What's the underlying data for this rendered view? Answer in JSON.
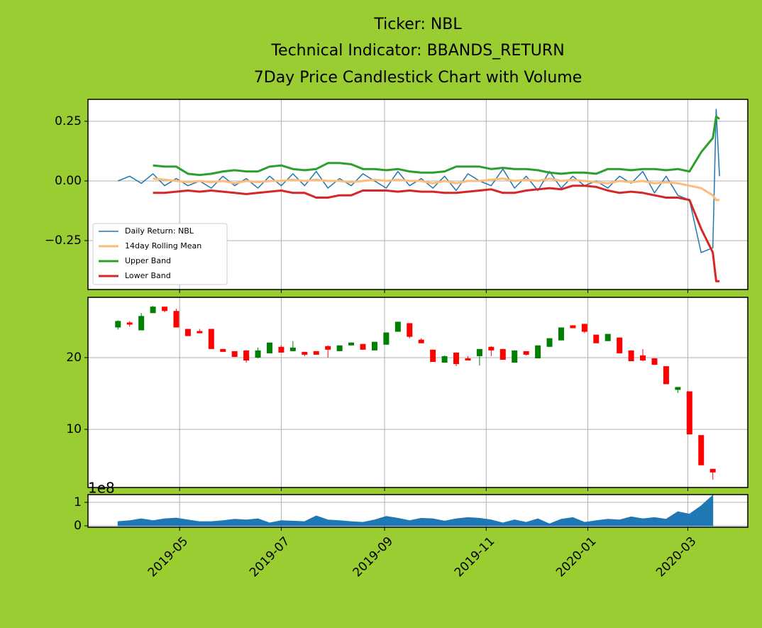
{
  "chart_data": [
    {
      "type": "line",
      "title": [
        "Ticker: NBL",
        "Technical Indicator: BBANDS_RETURN",
        "7Day Price Candlestick Chart with Volume"
      ],
      "x": [
        "2019-03-25",
        "2019-04-01",
        "2019-04-08",
        "2019-04-15",
        "2019-04-22",
        "2019-04-29",
        "2019-05-06",
        "2019-05-13",
        "2019-05-20",
        "2019-05-27",
        "2019-06-03",
        "2019-06-10",
        "2019-06-17",
        "2019-06-24",
        "2019-07-01",
        "2019-07-08",
        "2019-07-15",
        "2019-07-22",
        "2019-07-29",
        "2019-08-05",
        "2019-08-12",
        "2019-08-19",
        "2019-08-26",
        "2019-09-02",
        "2019-09-09",
        "2019-09-16",
        "2019-09-23",
        "2019-09-30",
        "2019-10-07",
        "2019-10-14",
        "2019-10-21",
        "2019-10-28",
        "2019-11-04",
        "2019-11-11",
        "2019-11-18",
        "2019-11-25",
        "2019-12-02",
        "2019-12-09",
        "2019-12-16",
        "2019-12-23",
        "2019-12-30",
        "2020-01-06",
        "2020-01-13",
        "2020-01-20",
        "2020-01-27",
        "2020-02-03",
        "2020-02-10",
        "2020-02-17",
        "2020-02-24",
        "2020-03-02",
        "2020-03-09",
        "2020-03-16",
        "2020-03-18",
        "2020-03-20"
      ],
      "series": [
        {
          "name": "Daily Return: NBL",
          "color": "#1f77b4",
          "width": 1.5,
          "values": [
            0.0,
            0.02,
            -0.01,
            0.03,
            -0.02,
            0.01,
            -0.02,
            0.0,
            -0.03,
            0.02,
            -0.02,
            0.01,
            -0.03,
            0.02,
            -0.02,
            0.03,
            -0.02,
            0.04,
            -0.03,
            0.01,
            -0.02,
            0.03,
            0.0,
            -0.03,
            0.04,
            -0.02,
            0.01,
            -0.03,
            0.02,
            -0.04,
            0.03,
            0.0,
            -0.02,
            0.05,
            -0.03,
            0.02,
            -0.04,
            0.04,
            -0.03,
            0.02,
            -0.02,
            0.0,
            -0.03,
            0.02,
            -0.01,
            0.04,
            -0.05,
            0.02,
            -0.06,
            -0.08,
            -0.3,
            -0.28,
            0.3,
            0.02
          ]
        },
        {
          "name": "14day Rolling Mean",
          "color": "#ffbb78",
          "width": 3,
          "values": [
            null,
            null,
            null,
            0.01,
            0.005,
            0.0,
            -0.005,
            0.0,
            -0.005,
            0.0,
            -0.01,
            0.0,
            -0.005,
            0.0,
            0.0,
            0.005,
            0.0,
            0.005,
            0.0,
            0.0,
            -0.005,
            0.0,
            0.005,
            0.0,
            0.005,
            0.0,
            0.0,
            -0.01,
            0.0,
            -0.01,
            0.0,
            0.0,
            0.005,
            0.01,
            0.0,
            0.005,
            0.0,
            0.01,
            0.0,
            0.005,
            0.0,
            -0.005,
            -0.01,
            0.0,
            -0.005,
            0.0,
            -0.01,
            -0.005,
            -0.01,
            -0.02,
            -0.03,
            -0.06,
            -0.08,
            -0.08
          ]
        },
        {
          "name": "Upper Band",
          "color": "#2ca02c",
          "width": 3,
          "values": [
            null,
            null,
            null,
            0.065,
            0.06,
            0.06,
            0.03,
            0.025,
            0.03,
            0.04,
            0.045,
            0.04,
            0.04,
            0.06,
            0.065,
            0.05,
            0.045,
            0.05,
            0.075,
            0.075,
            0.07,
            0.05,
            0.05,
            0.045,
            0.05,
            0.04,
            0.035,
            0.035,
            0.04,
            0.06,
            0.06,
            0.06,
            0.05,
            0.055,
            0.05,
            0.05,
            0.045,
            0.035,
            0.03,
            0.035,
            0.035,
            0.03,
            0.05,
            0.05,
            0.045,
            0.05,
            0.05,
            0.045,
            0.05,
            0.04,
            0.12,
            0.18,
            0.27,
            0.26
          ]
        },
        {
          "name": "Lower Band",
          "color": "#d62728",
          "width": 3,
          "values": [
            null,
            null,
            null,
            -0.05,
            -0.05,
            -0.045,
            -0.04,
            -0.045,
            -0.04,
            -0.045,
            -0.05,
            -0.055,
            -0.05,
            -0.045,
            -0.04,
            -0.05,
            -0.05,
            -0.07,
            -0.07,
            -0.06,
            -0.06,
            -0.04,
            -0.04,
            -0.04,
            -0.045,
            -0.04,
            -0.045,
            -0.045,
            -0.05,
            -0.05,
            -0.045,
            -0.04,
            -0.035,
            -0.05,
            -0.05,
            -0.04,
            -0.035,
            -0.03,
            -0.035,
            -0.02,
            -0.02,
            -0.025,
            -0.04,
            -0.05,
            -0.045,
            -0.05,
            -0.06,
            -0.07,
            -0.07,
            -0.08,
            -0.2,
            -0.3,
            -0.42,
            -0.42
          ]
        }
      ],
      "xlim": [
        "2019-03-07",
        "2020-04-06"
      ],
      "xticks": [
        "2019-05-01",
        "2019-07-01",
        "2019-09-01",
        "2019-11-01",
        "2020-01-01",
        "2020-03-01"
      ],
      "ylim": [
        -0.455,
        0.342
      ],
      "yticks": [
        0.25,
        {
          "value": 0,
          "label": "0.00"
        },
        {
          "value": -0.25,
          "label": "−0.25"
        }
      ],
      "grid": true,
      "legend": "lower left"
    },
    {
      "type": "candlestick",
      "x": [
        "2019-03-25",
        "2019-04-01",
        "2019-04-08",
        "2019-04-15",
        "2019-04-22",
        "2019-04-29",
        "2019-05-06",
        "2019-05-13",
        "2019-05-20",
        "2019-05-27",
        "2019-06-03",
        "2019-06-10",
        "2019-06-17",
        "2019-06-24",
        "2019-07-01",
        "2019-07-08",
        "2019-07-15",
        "2019-07-22",
        "2019-07-29",
        "2019-08-05",
        "2019-08-12",
        "2019-08-19",
        "2019-08-26",
        "2019-09-02",
        "2019-09-09",
        "2019-09-16",
        "2019-09-23",
        "2019-09-30",
        "2019-10-07",
        "2019-10-14",
        "2019-10-21",
        "2019-10-28",
        "2019-11-04",
        "2019-11-11",
        "2019-11-18",
        "2019-11-25",
        "2019-12-02",
        "2019-12-09",
        "2019-12-16",
        "2019-12-23",
        "2019-12-30",
        "2020-01-06",
        "2020-01-13",
        "2020-01-20",
        "2020-01-27",
        "2020-02-03",
        "2020-02-10",
        "2020-02-17",
        "2020-02-24",
        "2020-03-02",
        "2020-03-09",
        "2020-03-16"
      ],
      "open": [
        24.2,
        24.9,
        23.8,
        26.2,
        27.1,
        26.5,
        24.0,
        23.7,
        24.0,
        21.2,
        20.9,
        21.0,
        20.0,
        20.6,
        21.5,
        20.9,
        20.8,
        20.9,
        21.6,
        20.9,
        21.7,
        21.9,
        21.0,
        21.8,
        23.6,
        24.8,
        22.5,
        21.1,
        19.3,
        20.7,
        19.9,
        20.2,
        21.5,
        21.2,
        19.3,
        20.9,
        19.9,
        21.5,
        22.4,
        24.5,
        24.7,
        23.2,
        22.3,
        22.8,
        21.0,
        20.3,
        19.9,
        18.8,
        15.5,
        15.3,
        9.2,
        4.5
      ],
      "high": [
        25.2,
        25.1,
        26.2,
        27.2,
        27.1,
        26.8,
        24.0,
        24.0,
        24.0,
        21.2,
        20.9,
        21.0,
        21.4,
        22.1,
        21.7,
        22.3,
        20.8,
        20.9,
        21.7,
        21.7,
        22.1,
        21.9,
        22.2,
        23.5,
        25.0,
        24.8,
        22.7,
        21.1,
        20.3,
        20.7,
        20.2,
        21.2,
        21.6,
        21.2,
        21.0,
        20.9,
        21.7,
        22.7,
        24.2,
        24.5,
        24.7,
        23.2,
        23.3,
        22.8,
        21.0,
        21.2,
        19.9,
        18.8,
        15.9,
        15.3,
        9.2,
        4.5
      ],
      "low": [
        23.9,
        24.3,
        23.8,
        26.2,
        26.3,
        24.2,
        23.0,
        23.4,
        21.2,
        20.8,
        20.1,
        19.3,
        19.9,
        20.6,
        20.7,
        20.9,
        20.2,
        20.4,
        20.0,
        20.9,
        21.7,
        21.1,
        21.0,
        21.8,
        23.6,
        22.7,
        22.0,
        19.4,
        19.3,
        18.8,
        19.6,
        18.9,
        20.2,
        19.7,
        19.3,
        20.3,
        19.9,
        21.5,
        22.4,
        24.1,
        23.4,
        22.0,
        22.3,
        20.6,
        19.5,
        19.5,
        19.0,
        16.3,
        15.1,
        9.3,
        5.0,
        3.0
      ],
      "close": [
        25.1,
        24.6,
        25.8,
        27.1,
        26.5,
        24.2,
        23.0,
        23.4,
        21.2,
        20.8,
        20.1,
        19.6,
        21.0,
        22.1,
        20.7,
        21.4,
        20.4,
        20.4,
        21.1,
        21.7,
        22.1,
        21.1,
        22.2,
        23.5,
        25.0,
        22.9,
        22.0,
        19.4,
        20.2,
        19.1,
        19.6,
        21.2,
        21.0,
        19.7,
        21.0,
        20.4,
        21.7,
        22.7,
        24.2,
        24.1,
        23.6,
        22.0,
        23.3,
        20.6,
        19.5,
        19.6,
        19.0,
        16.3,
        15.9,
        9.3,
        5.0,
        4.0
      ],
      "up_color": "#008000",
      "down_color": "#ff0000",
      "xlim": [
        "2019-03-07",
        "2020-04-06"
      ],
      "xticks": [
        "2019-05-01",
        "2019-07-01",
        "2019-09-01",
        "2019-11-01",
        "2020-01-01",
        "2020-03-01"
      ],
      "ylim": [
        1.9,
        28.4
      ],
      "yticks": [
        10,
        20
      ],
      "grid": true
    },
    {
      "type": "area",
      "x": [
        "2019-03-25",
        "2019-04-01",
        "2019-04-08",
        "2019-04-15",
        "2019-04-22",
        "2019-04-29",
        "2019-05-06",
        "2019-05-13",
        "2019-05-20",
        "2019-05-27",
        "2019-06-03",
        "2019-06-10",
        "2019-06-17",
        "2019-06-24",
        "2019-07-01",
        "2019-07-08",
        "2019-07-15",
        "2019-07-22",
        "2019-07-29",
        "2019-08-05",
        "2019-08-12",
        "2019-08-19",
        "2019-08-26",
        "2019-09-02",
        "2019-09-09",
        "2019-09-16",
        "2019-09-23",
        "2019-09-30",
        "2019-10-07",
        "2019-10-14",
        "2019-10-21",
        "2019-10-28",
        "2019-11-04",
        "2019-11-11",
        "2019-11-18",
        "2019-11-25",
        "2019-12-02",
        "2019-12-09",
        "2019-12-16",
        "2019-12-23",
        "2019-12-30",
        "2020-01-06",
        "2020-01-13",
        "2020-01-20",
        "2020-01-27",
        "2020-02-03",
        "2020-02-10",
        "2020-02-17",
        "2020-02-24",
        "2020-03-02",
        "2020-03-09",
        "2020-03-16"
      ],
      "values": [
        18000000,
        22000000,
        30000000,
        22000000,
        30000000,
        33000000,
        25000000,
        18000000,
        18000000,
        22000000,
        28000000,
        25000000,
        30000000,
        12000000,
        22000000,
        20000000,
        18000000,
        42000000,
        25000000,
        22000000,
        18000000,
        15000000,
        25000000,
        40000000,
        32000000,
        22000000,
        32000000,
        30000000,
        20000000,
        30000000,
        35000000,
        32000000,
        25000000,
        12000000,
        25000000,
        15000000,
        30000000,
        8000000,
        28000000,
        35000000,
        15000000,
        22000000,
        28000000,
        25000000,
        38000000,
        30000000,
        35000000,
        28000000,
        60000000,
        50000000,
        85000000,
        130000000
      ],
      "color": "#1f77b4",
      "offset_text": "1e8",
      "xlim": [
        "2019-03-07",
        "2020-04-06"
      ],
      "xticks": [
        {
          "value": "2019-05-01",
          "label": "2019-05"
        },
        {
          "value": "2019-07-01",
          "label": "2019-07"
        },
        {
          "value": "2019-09-01",
          "label": "2019-09"
        },
        {
          "value": "2019-11-01",
          "label": "2019-11"
        },
        {
          "value": "2020-01-01",
          "label": "2020-01"
        },
        {
          "value": "2020-03-01",
          "label": "2020-03"
        }
      ],
      "ylim": [
        -6000000,
        133000000
      ],
      "yticks": [
        0,
        {
          "value": 100000000,
          "label": "1"
        }
      ],
      "grid": true
    }
  ]
}
